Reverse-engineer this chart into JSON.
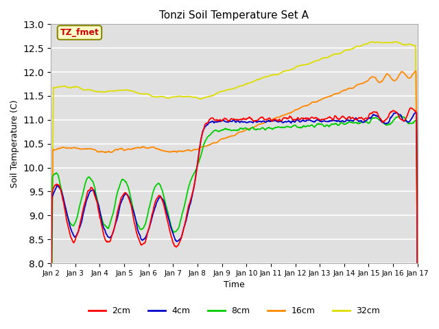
{
  "title": "Tonzi Soil Temperature Set A",
  "xlabel": "Time",
  "ylabel": "Soil Temperature (C)",
  "ylim": [
    8.0,
    13.0
  ],
  "yticks": [
    8.0,
    8.5,
    9.0,
    9.5,
    10.0,
    10.5,
    11.0,
    11.5,
    12.0,
    12.5,
    13.0
  ],
  "colors": {
    "2cm": "#ff0000",
    "4cm": "#0000cc",
    "8cm": "#00cc00",
    "16cm": "#ff8800",
    "32cm": "#dddd00"
  },
  "legend_label": "TZ_fmet",
  "legend_box_facecolor": "#ffffcc",
  "legend_box_edgecolor": "#888800",
  "bg_color": "#e0e0e0",
  "grid_color": "#ffffff",
  "n_points": 720,
  "xtick_dates": [
    "Jan 2",
    "Jan 3",
    "Jan 4",
    "Jan 5",
    "Jan 6",
    "Jan 7",
    "Jan 8",
    "Jan 9",
    "Jan 10",
    "Jan 11",
    "Jan 12",
    "Jan 13",
    "Jan 14",
    "Jan 15",
    "Jan 16",
    "Jan 17"
  ]
}
